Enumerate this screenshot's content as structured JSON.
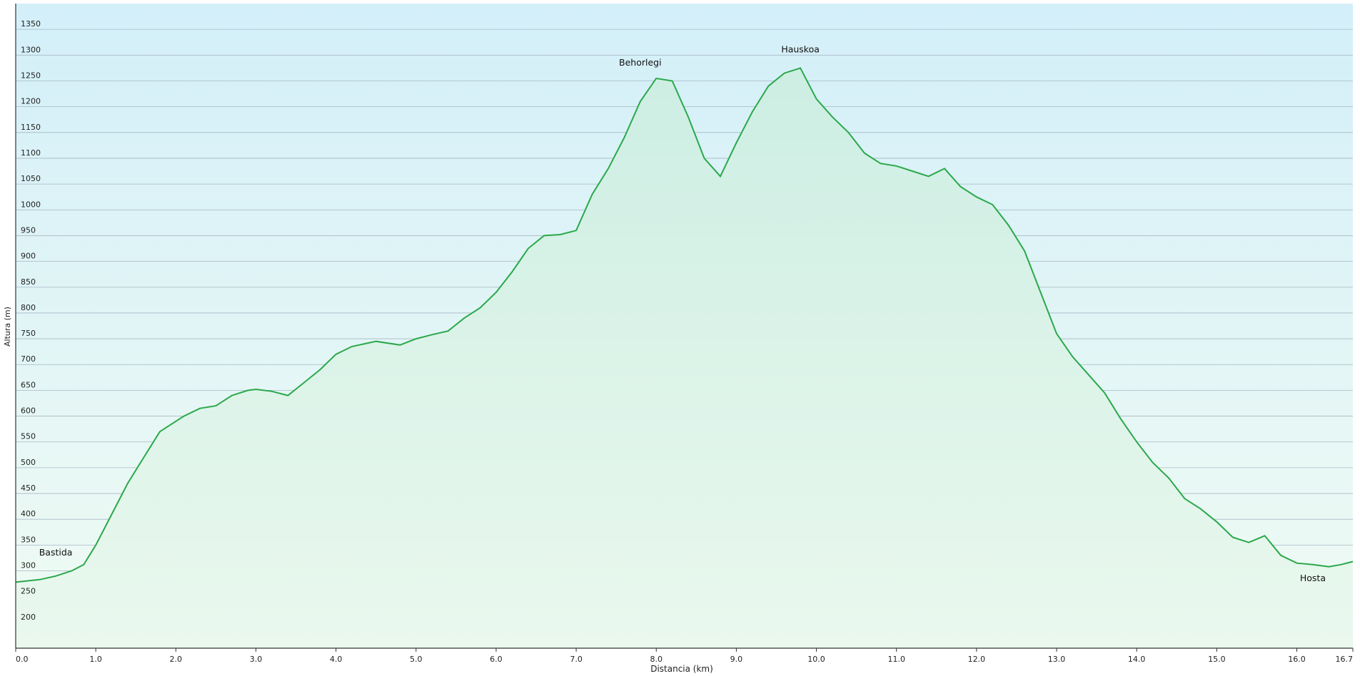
{
  "chart_data": {
    "type": "area",
    "title": "",
    "xlabel": "Distancia  (km)",
    "ylabel": "Altura (m)",
    "xlim": [
      0,
      16.7
    ],
    "ylim": [
      150,
      1400
    ],
    "x_ticks": [
      "0.0",
      "1.0",
      "2.0",
      "3.0",
      "4.0",
      "5.0",
      "6.0",
      "7.0",
      "8.0",
      "9.0",
      "10.0",
      "11.0",
      "12.0",
      "13.0",
      "14.0",
      "15.0",
      "16.0",
      "16.7"
    ],
    "y_ticks": [
      "200",
      "250",
      "300",
      "350",
      "400",
      "450",
      "500",
      "550",
      "600",
      "650",
      "700",
      "750",
      "800",
      "850",
      "900",
      "950",
      "1000",
      "1050",
      "1100",
      "1150",
      "1200",
      "1250",
      "1300",
      "1350"
    ],
    "grid": true,
    "legend": "none",
    "colors": {
      "line": "#2aa84a",
      "fill_top": "#cdeee3",
      "fill_bottom": "#eaf8ee",
      "bg_top": "#d3eff9",
      "bg_bottom": "#f0fbf3",
      "grid": "#a8b8c4"
    },
    "annotations": [
      {
        "label": "Bastida",
        "x": 0.5,
        "y": 330
      },
      {
        "label": "Behorlegi",
        "x": 7.8,
        "y": 1280
      },
      {
        "label": "Hauskoa",
        "x": 9.8,
        "y": 1305
      },
      {
        "label": "Hosta",
        "x": 16.2,
        "y": 280
      }
    ],
    "series": [
      {
        "x": [
          0,
          0.3,
          0.5,
          0.7,
          0.85,
          1.0,
          1.2,
          1.4,
          1.6,
          1.8,
          2.0,
          2.1,
          2.3,
          2.5,
          2.7,
          2.9,
          3.0,
          3.2,
          3.4,
          3.6,
          3.8,
          4.0,
          4.2,
          4.5,
          4.8,
          5.0,
          5.2,
          5.4,
          5.6,
          5.8,
          6.0,
          6.2,
          6.4,
          6.6,
          6.8,
          7.0,
          7.2,
          7.4,
          7.6,
          7.8,
          8.0,
          8.2,
          8.4,
          8.6,
          8.8,
          9.0,
          9.2,
          9.4,
          9.6,
          9.8,
          10.0,
          10.2,
          10.4,
          10.6,
          10.8,
          11.0,
          11.2,
          11.4,
          11.6,
          11.8,
          12.0,
          12.2,
          12.4,
          12.6,
          12.8,
          13.0,
          13.2,
          13.4,
          13.6,
          13.8,
          14.0,
          14.2,
          14.4,
          14.6,
          14.8,
          15.0,
          15.2,
          15.4,
          15.6,
          15.8,
          16.0,
          16.2,
          16.4,
          16.55,
          16.7
        ],
        "y": [
          278,
          283,
          290,
          300,
          312,
          350,
          410,
          470,
          520,
          570,
          590,
          600,
          615,
          620,
          640,
          650,
          652,
          648,
          640,
          665,
          690,
          720,
          735,
          745,
          738,
          750,
          758,
          765,
          790,
          810,
          840,
          880,
          925,
          950,
          952,
          960,
          1030,
          1080,
          1140,
          1210,
          1255,
          1250,
          1180,
          1100,
          1065,
          1130,
          1190,
          1240,
          1265,
          1275,
          1215,
          1180,
          1150,
          1110,
          1090,
          1085,
          1075,
          1065,
          1080,
          1045,
          1025,
          1010,
          970,
          920,
          840,
          760,
          715,
          680,
          645,
          595,
          550,
          510,
          480,
          440,
          420,
          395,
          365,
          355,
          368,
          330,
          315,
          312,
          308,
          312,
          318
        ]
      }
    ]
  }
}
